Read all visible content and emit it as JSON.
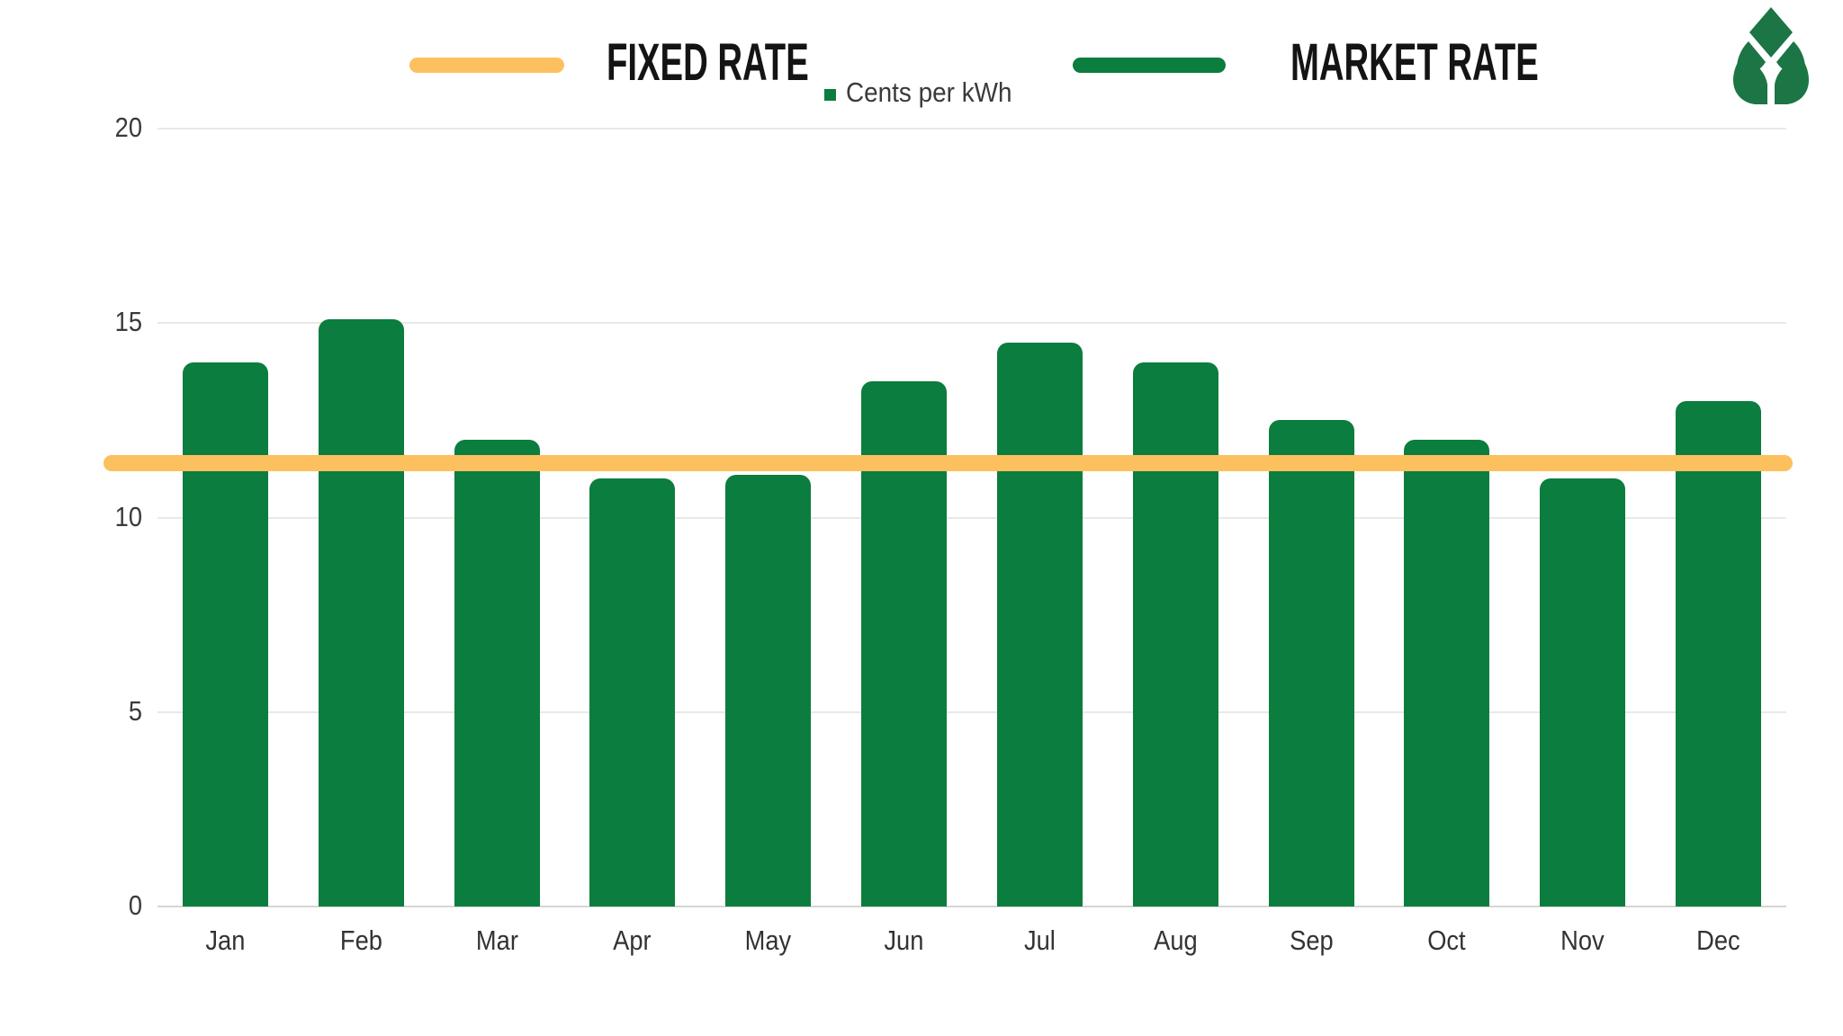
{
  "legend": {
    "fixed_label": "FIXED RATE",
    "market_label": "MARKET RATE",
    "units_label": "Cents per kWh"
  },
  "colors": {
    "bar_green": "#0b7d3e",
    "fixed_yellow": "#fcc05f",
    "axis_text": "#3a3a3a",
    "gridline": "#e9e9e6"
  },
  "logo": {
    "name": "leaf-logo",
    "color": "#1c7544"
  },
  "chart_data": {
    "type": "bar",
    "title": "",
    "categories": [
      "Jan",
      "Feb",
      "Mar",
      "Apr",
      "May",
      "Jun",
      "Jul",
      "Aug",
      "Sep",
      "Oct",
      "Nov",
      "Dec"
    ],
    "series": [
      {
        "name": "MARKET RATE",
        "type": "bar",
        "color": "#0b7d3e",
        "values": [
          14.0,
          15.1,
          12.0,
          11.0,
          11.1,
          13.5,
          14.5,
          14.0,
          12.5,
          12.0,
          11.0,
          13.0
        ]
      },
      {
        "name": "FIXED RATE",
        "type": "reference-line",
        "color": "#fcc05f",
        "value": 11.4
      }
    ],
    "ylabel": "Cents per kWh",
    "xlabel": "",
    "ylim": [
      0,
      20
    ],
    "yticks": [
      20,
      15,
      10,
      5,
      0
    ],
    "grid": true,
    "legend_position": "top"
  }
}
